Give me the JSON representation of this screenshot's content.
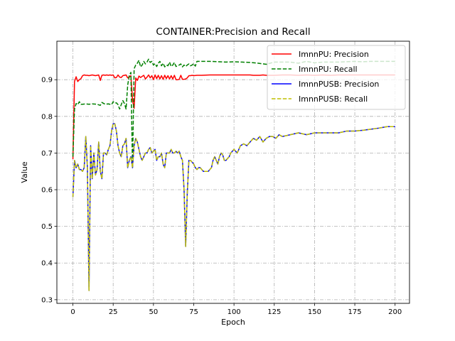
{
  "chart_data": {
    "type": "line",
    "title": "CONTAINER:Precision and Recall",
    "xlabel": "Epoch",
    "ylabel": "Value",
    "xlim": [
      -9.95,
      208.95
    ],
    "ylim": [
      0.29,
      1.005
    ],
    "xticks": [
      0,
      25,
      50,
      75,
      100,
      125,
      150,
      175,
      200
    ],
    "yticks": [
      0.3,
      0.4,
      0.5,
      0.6,
      0.7,
      0.8,
      0.9
    ],
    "ytick_labels": [
      "0.3",
      "0.4",
      "0.5",
      "0.6",
      "0.7",
      "0.8",
      "0.9"
    ],
    "grid": true,
    "legend_position": "top-right",
    "series": [
      {
        "name": "ImnnPU: Precision",
        "color": "#ff0000",
        "dash": "solid",
        "x": [
          0,
          1,
          2,
          3,
          4,
          5,
          6,
          7,
          8,
          9,
          10,
          11,
          12,
          13,
          14,
          15,
          16,
          17,
          18,
          19,
          20,
          21,
          22,
          23,
          24,
          25,
          26,
          27,
          28,
          29,
          30,
          31,
          32,
          33,
          34,
          35,
          36,
          37,
          38,
          39,
          40,
          41,
          42,
          43,
          44,
          45,
          46,
          47,
          48,
          49,
          50,
          51,
          52,
          53,
          54,
          55,
          56,
          57,
          58,
          59,
          60,
          61,
          62,
          63,
          64,
          65,
          66,
          67,
          68,
          69,
          70,
          71,
          72,
          73,
          74,
          75,
          77,
          80,
          85,
          90,
          95,
          100,
          105,
          110,
          112,
          114,
          116,
          118,
          120,
          125,
          130,
          135,
          140,
          145,
          150,
          155,
          160,
          165,
          170,
          175,
          180,
          185,
          190,
          195,
          200
        ],
        "y": [
          0.683,
          0.895,
          0.908,
          0.895,
          0.9,
          0.903,
          0.911,
          0.913,
          0.912,
          0.912,
          0.911,
          0.912,
          0.913,
          0.912,
          0.911,
          0.912,
          0.913,
          0.898,
          0.912,
          0.913,
          0.912,
          0.913,
          0.912,
          0.913,
          0.912,
          0.913,
          0.905,
          0.906,
          0.913,
          0.907,
          0.906,
          0.911,
          0.912,
          0.913,
          0.905,
          0.907,
          0.911,
          0.845,
          0.822,
          0.905,
          0.898,
          0.91,
          0.906,
          0.909,
          0.912,
          0.902,
          0.907,
          0.913,
          0.905,
          0.911,
          0.9,
          0.913,
          0.903,
          0.912,
          0.902,
          0.911,
          0.901,
          0.912,
          0.903,
          0.911,
          0.902,
          0.911,
          0.902,
          0.912,
          0.9,
          0.9,
          0.901,
          0.912,
          0.901,
          0.901,
          0.902,
          0.905,
          0.911,
          0.911,
          0.912,
          0.911,
          0.912,
          0.912,
          0.913,
          0.913,
          0.913,
          0.913,
          0.913,
          0.913,
          0.912,
          0.912,
          0.912,
          0.913,
          0.912,
          0.912,
          0.913,
          0.913,
          0.912,
          0.913,
          0.912,
          0.913,
          0.912,
          0.913,
          0.913,
          0.913,
          0.913,
          0.913,
          0.913,
          0.913,
          0.913
        ]
      },
      {
        "name": "ImnnPU: Recall",
        "color": "#008000",
        "dash": "dashed",
        "x": [
          0,
          1,
          2,
          3,
          4,
          5,
          6,
          8,
          10,
          12,
          15,
          17,
          18,
          20,
          22,
          24,
          25,
          26,
          27,
          28,
          29,
          30,
          31,
          32,
          33,
          34,
          35,
          36,
          37,
          38,
          39,
          40,
          41,
          42,
          43,
          44,
          45,
          46,
          47,
          48,
          49,
          50,
          51,
          52,
          53,
          54,
          55,
          56,
          57,
          58,
          59,
          60,
          61,
          62,
          63,
          64,
          65,
          66,
          67,
          68,
          69,
          70,
          71,
          72,
          73,
          74,
          75,
          76,
          77,
          78,
          80,
          85,
          90,
          95,
          100,
          105,
          110,
          115,
          120,
          125,
          130,
          135,
          140,
          145,
          150,
          155,
          160,
          165,
          170,
          175,
          180,
          185,
          190,
          195,
          200
        ],
        "y": [
          0.69,
          0.82,
          0.835,
          0.832,
          0.84,
          0.833,
          0.833,
          0.834,
          0.833,
          0.834,
          0.833,
          0.83,
          0.838,
          0.833,
          0.834,
          0.832,
          0.84,
          0.836,
          0.837,
          0.832,
          0.82,
          0.832,
          0.843,
          0.835,
          0.82,
          0.885,
          0.912,
          0.92,
          0.66,
          0.93,
          0.94,
          0.945,
          0.953,
          0.935,
          0.94,
          0.95,
          0.943,
          0.948,
          0.956,
          0.947,
          0.95,
          0.94,
          0.944,
          0.936,
          0.945,
          0.95,
          0.938,
          0.945,
          0.935,
          0.94,
          0.938,
          0.948,
          0.936,
          0.94,
          0.947,
          0.936,
          0.938,
          0.94,
          0.943,
          0.935,
          0.94,
          0.936,
          0.94,
          0.943,
          0.938,
          0.94,
          0.944,
          0.937,
          0.95,
          0.95,
          0.95,
          0.95,
          0.949,
          0.948,
          0.949,
          0.948,
          0.947,
          0.945,
          0.942,
          0.948,
          0.948,
          0.948,
          0.945,
          0.95,
          0.946,
          0.948,
          0.948,
          0.948,
          0.949,
          0.95,
          0.949,
          0.95,
          0.95,
          0.95,
          0.95
        ]
      },
      {
        "name": "ImnnPUSB: Precision",
        "color": "#0000ff",
        "dash": "solid",
        "x": [
          0,
          1,
          2,
          3,
          4,
          5,
          6,
          7,
          8,
          9,
          10,
          11,
          12,
          13,
          14,
          15,
          16,
          17,
          18,
          19,
          20,
          21,
          22,
          23,
          24,
          25,
          26,
          27,
          28,
          29,
          30,
          31,
          32,
          33,
          34,
          35,
          36,
          37,
          38,
          39,
          40,
          41,
          42,
          43,
          44,
          45,
          46,
          47,
          48,
          49,
          50,
          51,
          52,
          53,
          54,
          55,
          56,
          57,
          58,
          59,
          60,
          61,
          62,
          63,
          64,
          65,
          66,
          67,
          68,
          69,
          70,
          71,
          72,
          73,
          74,
          75,
          76,
          77,
          78,
          79,
          80,
          81,
          82,
          83,
          84,
          85,
          86,
          87,
          88,
          89,
          90,
          91,
          92,
          93,
          94,
          95,
          96,
          97,
          98,
          99,
          100,
          102,
          104,
          106,
          108,
          110,
          112,
          114,
          116,
          118,
          120,
          122,
          124,
          126,
          128,
          130,
          135,
          140,
          145,
          150,
          155,
          160,
          165,
          170,
          175,
          180,
          185,
          190,
          195,
          200
        ],
        "y": [
          0.58,
          0.68,
          0.66,
          0.67,
          0.655,
          0.655,
          0.65,
          0.66,
          0.745,
          0.66,
          0.325,
          0.72,
          0.63,
          0.7,
          0.64,
          0.655,
          0.73,
          0.65,
          0.63,
          0.7,
          0.7,
          0.695,
          0.71,
          0.72,
          0.76,
          0.78,
          0.78,
          0.76,
          0.72,
          0.7,
          0.69,
          0.72,
          0.725,
          0.74,
          0.66,
          0.68,
          0.69,
          0.66,
          0.72,
          0.74,
          0.73,
          0.71,
          0.69,
          0.68,
          0.69,
          0.7,
          0.7,
          0.71,
          0.715,
          0.7,
          0.705,
          0.71,
          0.68,
          0.69,
          0.69,
          0.7,
          0.67,
          0.66,
          0.7,
          0.7,
          0.7,
          0.71,
          0.7,
          0.7,
          0.705,
          0.7,
          0.705,
          0.69,
          0.68,
          0.6,
          0.445,
          0.59,
          0.68,
          0.68,
          0.675,
          0.67,
          0.66,
          0.655,
          0.66,
          0.66,
          0.655,
          0.65,
          0.65,
          0.65,
          0.65,
          0.655,
          0.66,
          0.68,
          0.69,
          0.68,
          0.67,
          0.69,
          0.7,
          0.695,
          0.68,
          0.68,
          0.685,
          0.69,
          0.7,
          0.705,
          0.71,
          0.7,
          0.72,
          0.725,
          0.72,
          0.73,
          0.74,
          0.735,
          0.745,
          0.73,
          0.74,
          0.745,
          0.745,
          0.74,
          0.75,
          0.745,
          0.75,
          0.755,
          0.75,
          0.755,
          0.755,
          0.755,
          0.755,
          0.76,
          0.76,
          0.762,
          0.765,
          0.768,
          0.772,
          0.772
        ]
      },
      {
        "name": "ImnnPUSB: Recall",
        "color": "#bfbf00",
        "dash": "dashed",
        "x": [
          0,
          1,
          2,
          3,
          4,
          5,
          6,
          7,
          8,
          9,
          10,
          11,
          12,
          13,
          14,
          15,
          16,
          17,
          18,
          19,
          20,
          21,
          22,
          23,
          24,
          25,
          26,
          27,
          28,
          29,
          30,
          31,
          32,
          33,
          34,
          35,
          36,
          37,
          38,
          39,
          40,
          41,
          42,
          43,
          44,
          45,
          46,
          47,
          48,
          49,
          50,
          51,
          52,
          53,
          54,
          55,
          56,
          57,
          58,
          59,
          60,
          61,
          62,
          63,
          64,
          65,
          66,
          67,
          68,
          69,
          70,
          71,
          72,
          73,
          74,
          75,
          76,
          77,
          78,
          79,
          80,
          81,
          82,
          83,
          84,
          85,
          86,
          87,
          88,
          89,
          90,
          91,
          92,
          93,
          94,
          95,
          96,
          97,
          98,
          99,
          100,
          102,
          104,
          106,
          108,
          110,
          112,
          114,
          116,
          118,
          120,
          122,
          124,
          126,
          128,
          130,
          135,
          140,
          145,
          150,
          155,
          160,
          165,
          170,
          175,
          180,
          185,
          190,
          195,
          200
        ],
        "y": [
          0.58,
          0.68,
          0.66,
          0.67,
          0.655,
          0.655,
          0.65,
          0.66,
          0.745,
          0.66,
          0.325,
          0.72,
          0.63,
          0.7,
          0.64,
          0.655,
          0.73,
          0.65,
          0.63,
          0.7,
          0.7,
          0.695,
          0.71,
          0.72,
          0.76,
          0.78,
          0.78,
          0.76,
          0.72,
          0.7,
          0.69,
          0.72,
          0.725,
          0.74,
          0.66,
          0.68,
          0.69,
          0.66,
          0.72,
          0.74,
          0.73,
          0.71,
          0.69,
          0.68,
          0.69,
          0.7,
          0.7,
          0.71,
          0.715,
          0.7,
          0.705,
          0.71,
          0.68,
          0.69,
          0.69,
          0.7,
          0.67,
          0.66,
          0.7,
          0.7,
          0.7,
          0.71,
          0.7,
          0.7,
          0.705,
          0.7,
          0.705,
          0.69,
          0.68,
          0.6,
          0.445,
          0.59,
          0.68,
          0.68,
          0.675,
          0.67,
          0.66,
          0.655,
          0.66,
          0.66,
          0.655,
          0.65,
          0.65,
          0.65,
          0.65,
          0.655,
          0.66,
          0.68,
          0.69,
          0.68,
          0.67,
          0.69,
          0.7,
          0.695,
          0.68,
          0.68,
          0.685,
          0.69,
          0.7,
          0.705,
          0.71,
          0.7,
          0.72,
          0.725,
          0.72,
          0.73,
          0.74,
          0.735,
          0.745,
          0.73,
          0.74,
          0.745,
          0.745,
          0.74,
          0.75,
          0.745,
          0.75,
          0.755,
          0.75,
          0.755,
          0.755,
          0.755,
          0.755,
          0.76,
          0.76,
          0.762,
          0.765,
          0.768,
          0.772,
          0.772
        ]
      }
    ]
  }
}
